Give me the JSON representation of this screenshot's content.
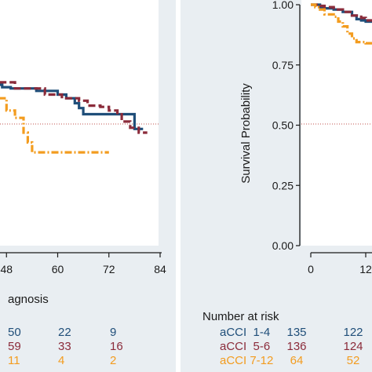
{
  "chart_data": [
    {
      "type": "line",
      "panel": "left",
      "style": "kaplan-meier step",
      "xlabel_partial": "agnosis",
      "x_ticks": [
        48,
        60,
        72,
        84
      ],
      "xlim": [
        0,
        84
      ],
      "ylim": [
        0,
        1
      ],
      "reference_line_y": 0.5,
      "series": [
        {
          "color": "#1f4e79",
          "dash": "solid",
          "points": [
            [
              32,
              0.66
            ],
            [
              40,
              0.655
            ],
            [
              47,
              0.645
            ],
            [
              49,
              0.64
            ],
            [
              55,
              0.63
            ],
            [
              60,
              0.615
            ],
            [
              62,
              0.6
            ],
            [
              64,
              0.58
            ],
            [
              65,
              0.56
            ],
            [
              66,
              0.535
            ],
            [
              78,
              0.535
            ],
            [
              78,
              0.475
            ],
            [
              80,
              0.475
            ]
          ]
        },
        {
          "color": "#8b2b3a",
          "dash": "dashed",
          "points": [
            [
              32,
              0.665
            ],
            [
              50,
              0.64
            ],
            [
              57,
              0.615
            ],
            [
              61,
              0.6
            ],
            [
              65,
              0.59
            ],
            [
              67,
              0.57
            ],
            [
              70,
              0.565
            ],
            [
              72,
              0.55
            ],
            [
              74,
              0.54
            ],
            [
              75,
              0.505
            ],
            [
              77,
              0.505
            ],
            [
              77,
              0.48
            ],
            [
              79,
              0.48
            ],
            [
              79,
              0.46
            ],
            [
              81,
              0.46
            ]
          ]
        },
        {
          "color": "#f39c1f",
          "dash": "dashdot",
          "points": [
            [
              32,
              0.625
            ],
            [
              35,
              0.625
            ],
            [
              37,
              0.6
            ],
            [
              47,
              0.6
            ],
            [
              48,
              0.55
            ],
            [
              50,
              0.52
            ],
            [
              52,
              0.46
            ],
            [
              53,
              0.42
            ],
            [
              54,
              0.38
            ],
            [
              72,
              0.38
            ]
          ]
        }
      ],
      "risk_table": {
        "header": "agnosis",
        "columns": [
          "48",
          "60",
          "72"
        ],
        "rows": [
          {
            "color": "#1f4e79",
            "values": [
              "50",
              "22",
              "9"
            ]
          },
          {
            "color": "#8b2b3a",
            "values": [
              "59",
              "33",
              "16"
            ]
          },
          {
            "color": "#f39c1f",
            "values": [
              "11",
              "4",
              "2"
            ]
          }
        ]
      }
    },
    {
      "type": "line",
      "panel": "right",
      "style": "kaplan-meier step",
      "ylabel": "Survival Probability",
      "y_ticks": [
        "0.00",
        "0.25",
        "0.50",
        "0.75",
        "1.00"
      ],
      "x_ticks": [
        "0",
        "12"
      ],
      "ylim": [
        0,
        1
      ],
      "reference_line_y": 0.5,
      "series": [
        {
          "name": "aCCI 1-4",
          "color": "#1f4e79",
          "dash": "solid",
          "points": [
            [
              0,
              1.0
            ],
            [
              1,
              1.0
            ],
            [
              2,
              0.99
            ],
            [
              3,
              0.985
            ],
            [
              5,
              0.98
            ],
            [
              7,
              0.97
            ],
            [
              9,
              0.955
            ],
            [
              10,
              0.94
            ],
            [
              11,
              0.935
            ],
            [
              12,
              0.93
            ],
            [
              14,
              0.92
            ]
          ]
        },
        {
          "name": "aCCI 5-6",
          "color": "#8b2b3a",
          "dash": "dashed",
          "points": [
            [
              0,
              1.0
            ],
            [
              1,
              1.0
            ],
            [
              2,
              0.995
            ],
            [
              3,
              0.99
            ],
            [
              5,
              0.98
            ],
            [
              7,
              0.97
            ],
            [
              9,
              0.955
            ],
            [
              11,
              0.945
            ],
            [
              12,
              0.935
            ],
            [
              14,
              0.925
            ]
          ]
        },
        {
          "name": "aCCI 7-12",
          "color": "#f39c1f",
          "dash": "dashdot",
          "points": [
            [
              0,
              1.0
            ],
            [
              1,
              0.99
            ],
            [
              2,
              0.98
            ],
            [
              3,
              0.96
            ],
            [
              5,
              0.95
            ],
            [
              6,
              0.93
            ],
            [
              7,
              0.91
            ],
            [
              8,
              0.88
            ],
            [
              9,
              0.86
            ],
            [
              10,
              0.845
            ],
            [
              12,
              0.84
            ],
            [
              14,
              0.835
            ]
          ]
        }
      ],
      "risk_table": {
        "header": "Number at risk",
        "columns": [
          "0",
          "12"
        ],
        "rows": [
          {
            "label": "aCCI  1-4",
            "color": "#1f4e79",
            "values": [
              "135",
              "122"
            ]
          },
          {
            "label": "aCCI  5-6",
            "color": "#8b2b3a",
            "values": [
              "136",
              "124"
            ]
          },
          {
            "label": "aCCI 7-12",
            "color": "#f39c1f",
            "values": [
              "64",
              "52"
            ]
          }
        ]
      }
    }
  ],
  "colors": {
    "panel_bg": "#e9eef2",
    "axis": "#1a1a1a",
    "reference": "#c0504d"
  }
}
